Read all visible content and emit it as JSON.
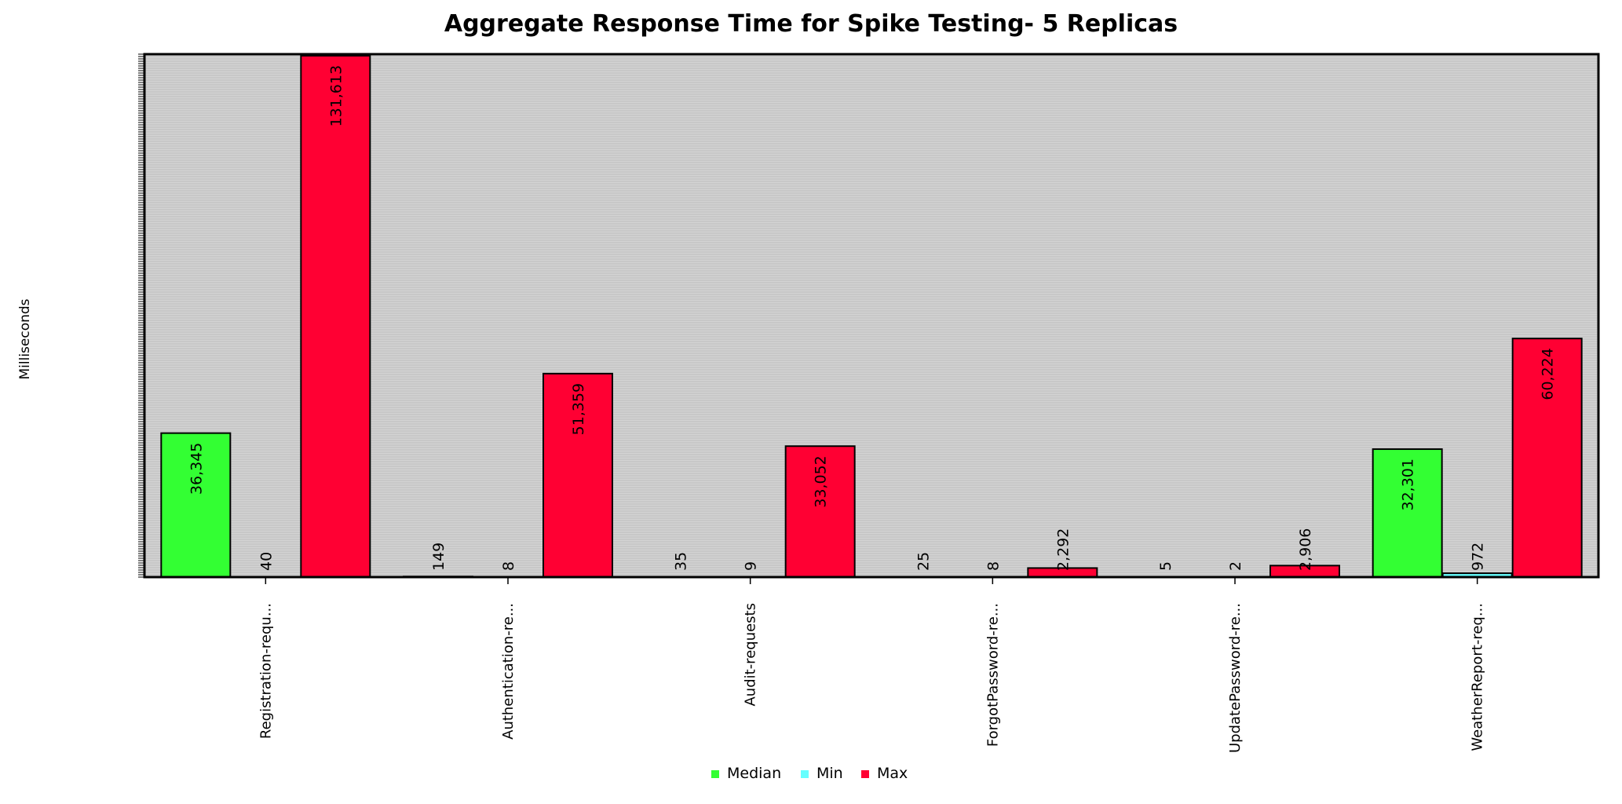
{
  "chart_data": {
    "type": "bar",
    "title": "Aggregate Response Time for Spike Testing- 5 Replicas",
    "xlabel": "",
    "ylabel": "Milliseconds",
    "categories": [
      "Registration-requ...",
      "Authentication-re...",
      "Audit-requests",
      "ForgotPassword-re...",
      "UpdatePassword-re...",
      "WeatherReport-req..."
    ],
    "series": [
      {
        "name": "Median",
        "color": "#33ff33",
        "values": [
          36345,
          149,
          35,
          25,
          5,
          32301
        ]
      },
      {
        "name": "Min",
        "color": "#66ffff",
        "values": [
          40,
          8,
          9,
          8,
          2,
          972
        ]
      },
      {
        "name": "Max",
        "color": "#ff0033",
        "values": [
          131613,
          51359,
          33052,
          2292,
          2906,
          60224
        ]
      }
    ],
    "data_labels": [
      [
        "36,345",
        "149",
        "35",
        "25",
        "5",
        "32,301"
      ],
      [
        "40",
        "8",
        "9",
        "8",
        "2",
        "972"
      ],
      [
        "131,613",
        "51,359",
        "33,052",
        "2,292",
        "2,906",
        "60,224"
      ]
    ],
    "ylim": [
      0,
      132000
    ],
    "grid": true,
    "legend_position": "bottom-center",
    "plot_background": "#d3d3d3"
  }
}
